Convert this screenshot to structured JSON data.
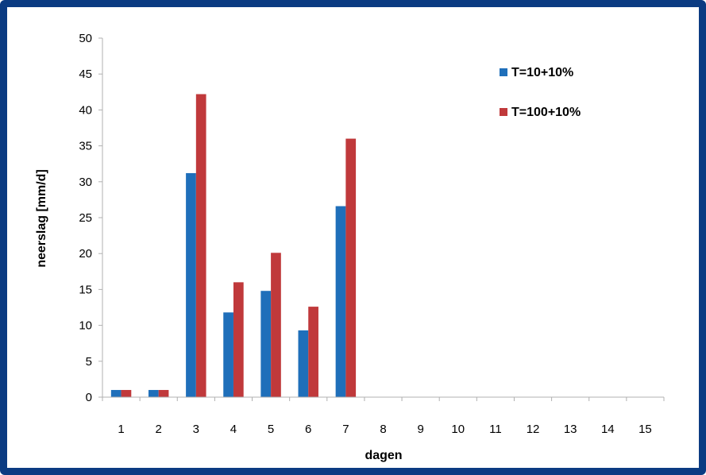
{
  "chart_data": {
    "type": "bar",
    "title": "",
    "xlabel": "dagen",
    "ylabel": "neerslag [mm/d]",
    "categories": [
      "1",
      "2",
      "3",
      "4",
      "5",
      "6",
      "7",
      "8",
      "9",
      "10",
      "11",
      "12",
      "13",
      "14",
      "15"
    ],
    "ylim": [
      0,
      50
    ],
    "yticks": [
      "0",
      "5",
      "10",
      "15",
      "20",
      "25",
      "30",
      "35",
      "40",
      "45",
      "50"
    ],
    "grid": false,
    "legend_position": "top-right",
    "series": [
      {
        "name": "T=10+10%",
        "color": "#1f6fba",
        "values": [
          1,
          1,
          31.2,
          11.8,
          14.8,
          9.3,
          26.6,
          0,
          0,
          0,
          0,
          0,
          0,
          0,
          0
        ]
      },
      {
        "name": "T=100+10%",
        "color": "#c0393b",
        "values": [
          1,
          1,
          42.2,
          16,
          20.1,
          12.6,
          36,
          0,
          0,
          0,
          0,
          0,
          0,
          0,
          0
        ]
      }
    ]
  }
}
